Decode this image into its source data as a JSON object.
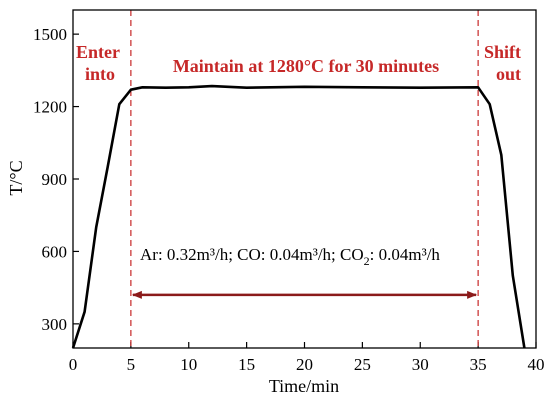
{
  "chart_data": {
    "type": "line",
    "xlabel": "Time/min",
    "ylabel": "T/°C",
    "xlim": [
      0,
      40
    ],
    "ylim": [
      200,
      1600
    ],
    "xticks": [
      0,
      5,
      10,
      15,
      20,
      25,
      30,
      35,
      40
    ],
    "yticks": [
      300,
      600,
      900,
      1200,
      1500
    ],
    "grid": false,
    "series": [
      {
        "color": "#000000",
        "x": [
          0,
          1,
          2,
          3,
          4,
          5,
          6,
          8,
          10,
          12,
          15,
          20,
          25,
          30,
          35,
          36,
          37,
          38,
          39
        ],
        "y": [
          200,
          350,
          700,
          950,
          1210,
          1270,
          1280,
          1278,
          1280,
          1285,
          1278,
          1282,
          1280,
          1278,
          1280,
          1210,
          1000,
          500,
          200
        ]
      }
    ],
    "markers": {
      "vlines": [
        5,
        35
      ],
      "vline_color": "#c62828",
      "arrow": {
        "x_start": 5,
        "x_end": 35,
        "y": 420,
        "color": "#8b1a1a"
      }
    },
    "annotations": {
      "enter_line1": "Enter",
      "enter_line2": "into",
      "maintain": "Maintain at 1280°C for 30 minutes",
      "shift_line1": "Shift",
      "shift_line2": "out",
      "gas_part1": "Ar: 0.32m³/h; CO: 0.04m³/h; CO",
      "gas_sub": "2",
      "gas_part2": ": 0.04m³/h"
    },
    "annotation_color": "#c62828"
  }
}
